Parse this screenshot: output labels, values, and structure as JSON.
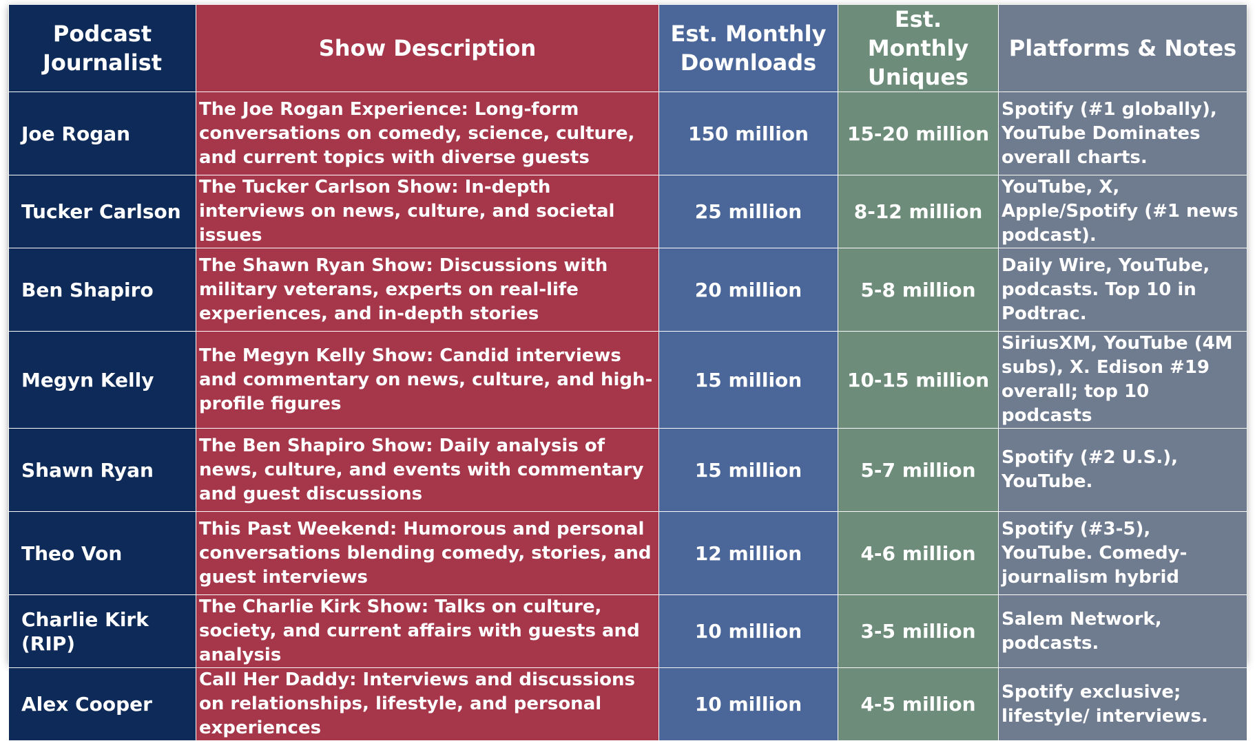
{
  "table": {
    "headers": [
      "Podcast Journalist",
      "Show Description",
      "Est. Monthly Downloads",
      "Est. Monthly Uniques",
      "Platforms & Notes"
    ],
    "rows": [
      {
        "journalist": "Joe Rogan",
        "description": "The Joe Rogan Experience: Long-form conversations on comedy, science, culture, and current topics with diverse guests",
        "downloads": "150 million",
        "uniques": "15-20 million",
        "notes": "Spotify (#1 globally), YouTube Dominates overall charts."
      },
      {
        "journalist": "Tucker Carlson",
        "description": "The Tucker Carlson Show: In-depth interviews on news, culture, and societal issues",
        "downloads": "25 million",
        "uniques": "8-12 million",
        "notes": "YouTube, X, Apple/Spotify (#1 news podcast)."
      },
      {
        "journalist": "Ben Shapiro",
        "description": "The Shawn Ryan Show: Discussions with military veterans, experts on real-life experiences, and in-depth stories",
        "downloads": "20 million",
        "uniques": "5-8 million",
        "notes": "Daily Wire, YouTube, podcasts. Top 10 in Podtrac."
      },
      {
        "journalist": "Megyn Kelly",
        "description": "The Megyn Kelly Show: Candid interviews and commentary on news, culture, and high-profile figures",
        "downloads": "15 million",
        "uniques": "10-15 million",
        "notes": "SiriusXM, YouTube (4M subs), X. Edison #19 overall; top 10 podcasts"
      },
      {
        "journalist": "Shawn Ryan",
        "description": "The Ben Shapiro Show: Daily analysis of news, culture, and events with commentary and guest discussions",
        "downloads": "15 million",
        "uniques": "5-7 million",
        "notes": "Spotify (#2 U.S.), YouTube."
      },
      {
        "journalist": "Theo Von",
        "description": "This Past Weekend: Humorous and personal conversations blending comedy, stories, and guest interviews",
        "downloads": "12 million",
        "uniques": "4-6 million",
        "notes": "Spotify (#3-5), YouTube. Comedy-journalism hybrid"
      },
      {
        "journalist": "Charlie Kirk (RIP)",
        "description": "The Charlie Kirk Show: Talks on culture, society, and current affairs with guests and analysis",
        "downloads": "10 million",
        "uniques": "3-5 million",
        "notes": "Salem Network, podcasts."
      },
      {
        "journalist": "Alex Cooper",
        "description": "Call Her Daddy: Interviews and discussions on relationships, lifestyle, and personal experiences",
        "downloads": "10 million",
        "uniques": "4-5 million",
        "notes": "Spotify exclusive; lifestyle/ interviews."
      }
    ]
  },
  "colors": {
    "journalist_column": "#0e2a59",
    "description_column": "#a6364a",
    "downloads_column": "#4b6699",
    "uniques_column": "#6e8c7a",
    "notes_column": "#6f7b8e"
  }
}
